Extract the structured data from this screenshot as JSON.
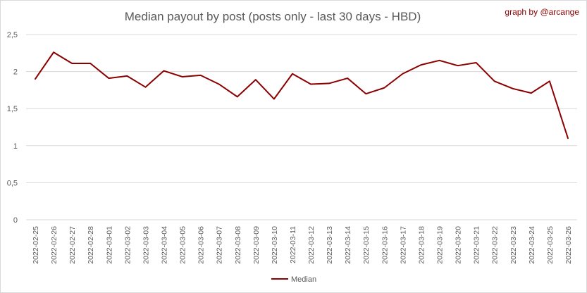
{
  "chart_data": {
    "type": "line",
    "title": "Median payout by post (posts only - last 30 days - HBD)",
    "credit": "graph by @arcange",
    "xlabel": "",
    "ylabel": "",
    "ylim": [
      0,
      2.5
    ],
    "yticks": [
      "0",
      "0,5",
      "1",
      "1,5",
      "2",
      "2,5"
    ],
    "grid": "horizontal",
    "legend_position": "bottom",
    "x": [
      "2022-02-25",
      "2022-02-26",
      "2022-02-27",
      "2022-02-28",
      "2022-03-01",
      "2022-03-02",
      "2022-03-03",
      "2022-03-04",
      "2022-03-05",
      "2022-03-06",
      "2022-03-07",
      "2022-03-08",
      "2022-03-09",
      "2022-03-10",
      "2022-03-11",
      "2022-03-12",
      "2022-03-13",
      "2022-03-14",
      "2022-03-15",
      "2022-03-16",
      "2022-03-17",
      "2022-03-18",
      "2022-03-19",
      "2022-03-20",
      "2022-03-21",
      "2022-03-22",
      "2022-03-23",
      "2022-03-24",
      "2022-03-25",
      "2022-03-26"
    ],
    "series": [
      {
        "name": "Median",
        "color": "#8b0000",
        "values": [
          1.9,
          2.26,
          2.11,
          2.11,
          1.91,
          1.94,
          1.79,
          2.01,
          1.93,
          1.95,
          1.83,
          1.66,
          1.89,
          1.63,
          1.97,
          1.83,
          1.84,
          1.91,
          1.7,
          1.78,
          1.97,
          2.09,
          2.15,
          2.08,
          2.12,
          1.87,
          1.77,
          1.71,
          1.87,
          1.1
        ]
      }
    ]
  }
}
